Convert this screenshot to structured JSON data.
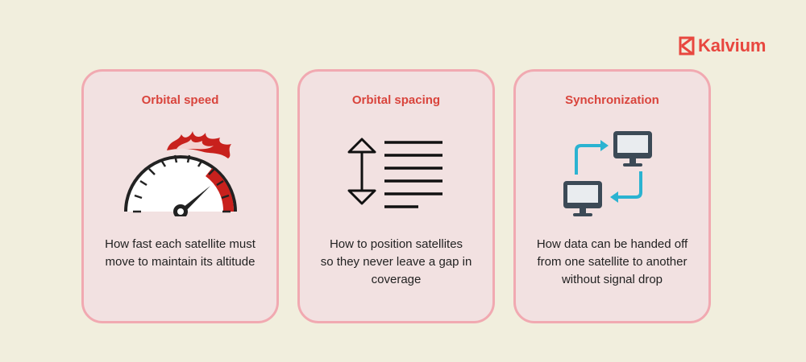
{
  "brand": {
    "name": "Kalvium",
    "color": "#e8473f"
  },
  "cards": [
    {
      "title": "Orbital speed",
      "icon": "speedometer-icon",
      "description_lines": [
        "How fast each satellite must",
        "move to maintain its altitude"
      ]
    },
    {
      "title": "Orbital spacing",
      "icon": "line-spacing-icon",
      "description_lines": [
        "How to position satellites",
        "so they never leave a gap in",
        "coverage"
      ]
    },
    {
      "title": "Synchronization",
      "icon": "sync-computers-icon",
      "description_lines": [
        "How data can be handed off",
        "from one satellite to another",
        "without signal drop"
      ]
    }
  ],
  "colors": {
    "background": "#f1eedd",
    "card_fill": "#f2e1e1",
    "card_border": "#f1a9b1",
    "title": "#d9443c",
    "arrow_accent": "#2bb3d1"
  }
}
